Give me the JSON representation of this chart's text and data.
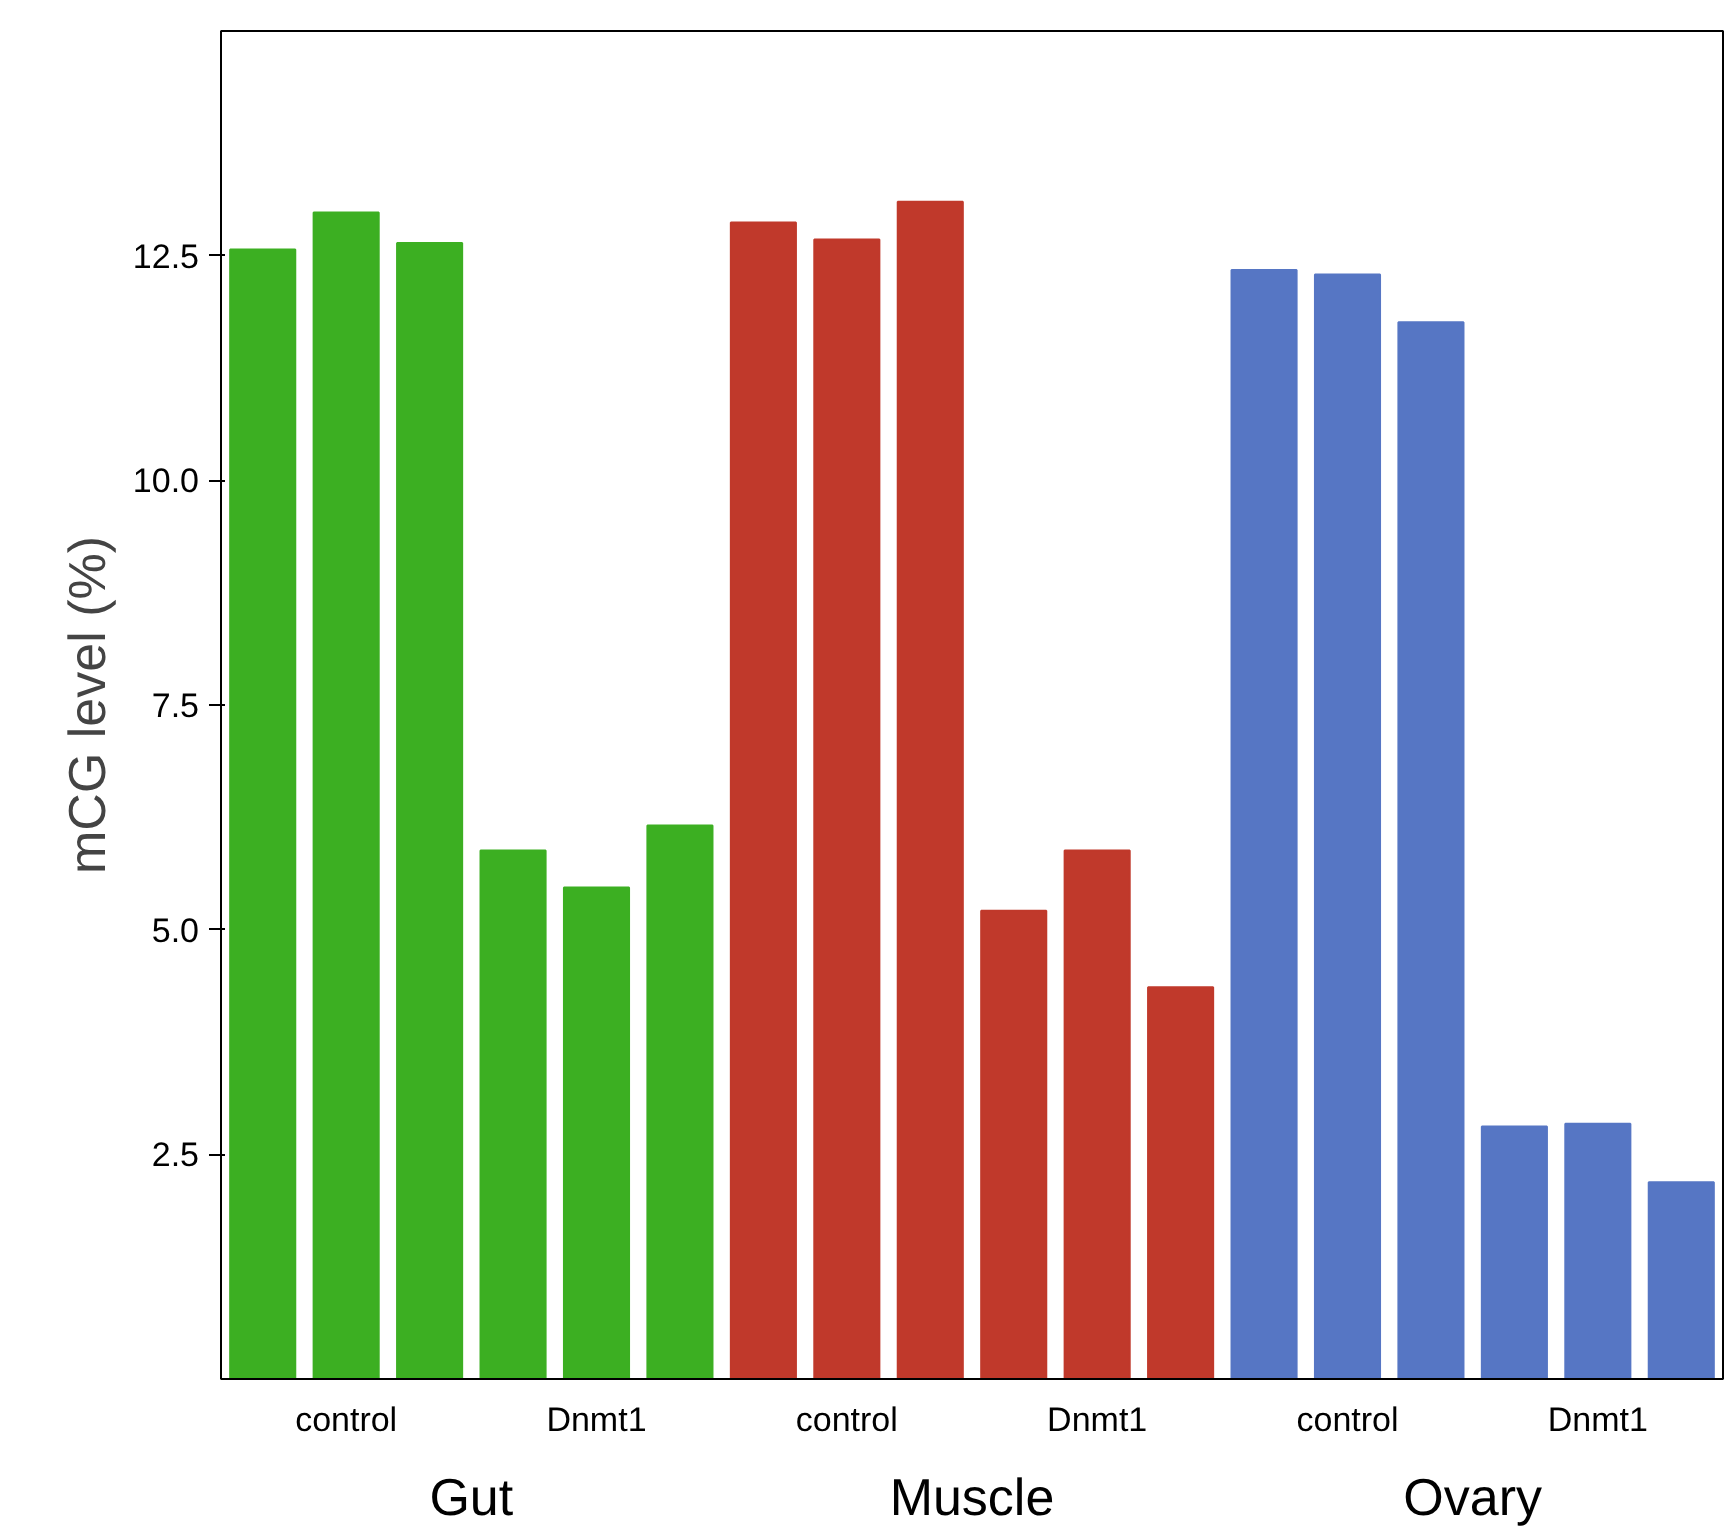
{
  "chart_data": {
    "type": "bar",
    "ylabel": "mCG level (%)",
    "categories": [
      "control",
      "Dnmt1",
      "control",
      "Dnmt1",
      "control",
      "Dnmt1"
    ],
    "series": [
      {
        "colors": [
          "#3caf22",
          "#3caf22",
          "#c0392b",
          "#c0392b",
          "#5676c4",
          "#5676c4"
        ],
        "values": [
          12.57,
          5.88,
          12.87,
          5.21,
          12.34,
          2.81
        ]
      },
      {
        "colors": [
          "#3caf22",
          "#3caf22",
          "#c0392b",
          "#c0392b",
          "#5676c4",
          "#5676c4"
        ],
        "values": [
          12.98,
          5.47,
          12.68,
          5.88,
          12.29,
          2.84
        ]
      },
      {
        "colors": [
          "#3caf22",
          "#3caf22",
          "#c0392b",
          "#c0392b",
          "#5676c4",
          "#5676c4"
        ],
        "values": [
          12.64,
          6.16,
          13.1,
          4.36,
          11.76,
          2.19
        ]
      }
    ],
    "ylim": [
      0,
      15
    ],
    "yticks": [
      2.5,
      {
        "value": 5,
        "label": "5.0"
      },
      7.5,
      {
        "value": 10,
        "label": "10.0"
      },
      12.5
    ],
    "annotations": [
      "Gut",
      "Muscle",
      "Ovary"
    ],
    "grid": false
  }
}
